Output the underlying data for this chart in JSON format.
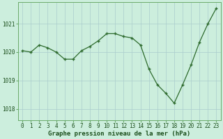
{
  "hours": [
    0,
    1,
    2,
    3,
    4,
    5,
    6,
    7,
    8,
    9,
    10,
    11,
    12,
    13,
    14,
    15,
    16,
    17,
    18,
    19,
    20,
    21,
    22,
    23
  ],
  "pressure": [
    1020.05,
    1020.0,
    1020.25,
    1020.15,
    1020.0,
    1019.75,
    1019.75,
    1020.05,
    1020.2,
    1020.4,
    1020.65,
    1020.65,
    1020.55,
    1020.5,
    1020.25,
    1019.4,
    1018.85,
    1018.55,
    1018.2,
    1018.85,
    1019.55,
    1020.35,
    1021.0,
    1021.55
  ],
  "line_color": "#2d6a2d",
  "marker_color": "#2d6a2d",
  "bg_color": "#cceedd",
  "grid_color": "#aacccc",
  "axis_label_color": "#1a4d1a",
  "tick_color": "#1a4d1a",
  "border_color": "#6aaa6a",
  "ylabel_ticks": [
    1018,
    1019,
    1020,
    1021
  ],
  "ylim": [
    1017.6,
    1021.75
  ],
  "xlim": [
    -0.5,
    23.5
  ],
  "xlabel": "Graphe pression niveau de la mer (hPa)",
  "xlabel_fontsize": 6.5,
  "xlabel_bold": true,
  "tick_fontsize": 5.5,
  "grid_linewidth": 0.5,
  "line_linewidth": 0.9,
  "marker_size": 3.5
}
